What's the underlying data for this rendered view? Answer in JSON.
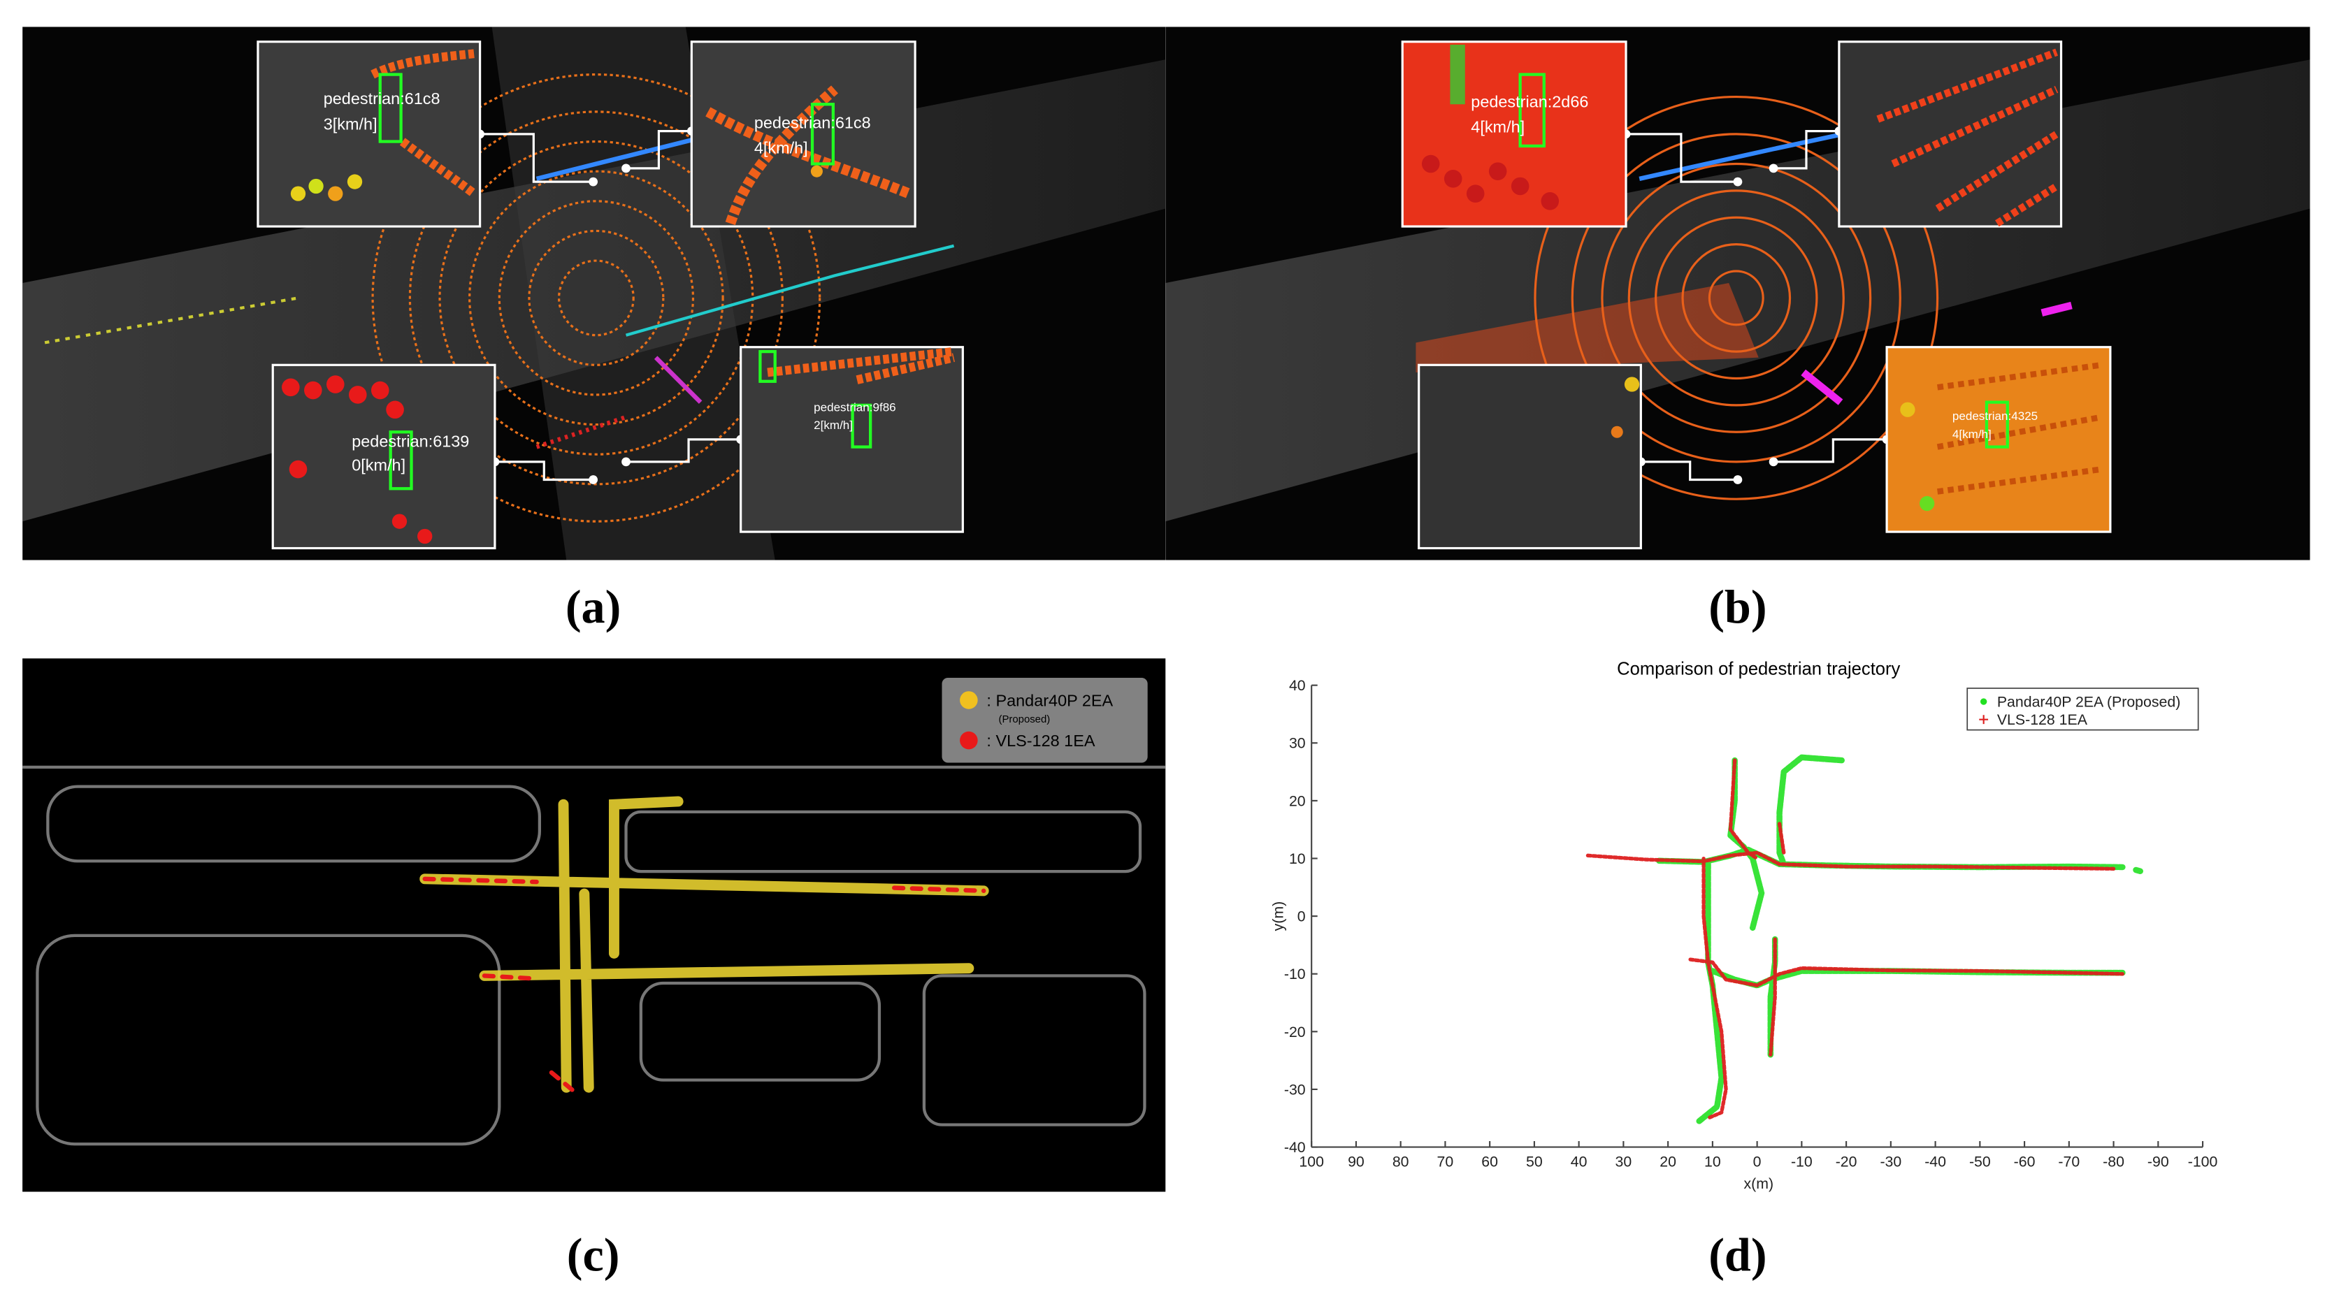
{
  "panels": {
    "a": {
      "label": "(a)",
      "insets": [
        {
          "id": "pedestrian:61c8",
          "speed": "3[km/h]"
        },
        {
          "id": "pedestrian:61c8",
          "speed": "4[km/h]"
        },
        {
          "id": "pedestrian:6139",
          "speed": "0[km/h]"
        },
        {
          "id": "pedestrian:9f86",
          "speed": "2[km/h]"
        }
      ]
    },
    "b": {
      "label": "(b)",
      "insets": [
        {
          "id": "pedestrian:2d66",
          "speed": "4[km/h]"
        },
        {
          "id": "pedestrian:4325",
          "speed": "4[km/h]"
        }
      ]
    },
    "c": {
      "label": "(c)",
      "legend": [
        {
          "name": ": Pandar40P 2EA",
          "note": "(Proposed)"
        },
        {
          "name": ": VLS-128 1EA"
        }
      ]
    },
    "d": {
      "label": "(d)"
    }
  },
  "chart_data": {
    "type": "line",
    "title": "Comparison of pedestrian trajectory",
    "x_label": "x(m)",
    "y_label": "y(m)",
    "xlim": [
      100,
      -100
    ],
    "xticks": [
      100,
      90,
      80,
      70,
      60,
      50,
      40,
      30,
      20,
      10,
      0,
      -10,
      -20,
      -30,
      -40,
      -50,
      -60,
      -70,
      -80,
      -90,
      -100
    ],
    "ylim": [
      -40,
      40
    ],
    "yticks": [
      -40,
      -30,
      -20,
      -10,
      0,
      10,
      20,
      30,
      40
    ],
    "legend": "upper right",
    "series": [
      {
        "name": "Pandar40P 2EA (Proposed)",
        "color": "#22e022",
        "x": [
          22,
          12,
          6,
          2,
          -5,
          -15,
          -30,
          -50,
          -70,
          -82,
          null,
          -85,
          -86,
          null,
          11,
          11,
          11,
          10,
          9,
          8,
          9,
          13,
          null,
          5,
          5,
          6,
          3,
          1,
          -1,
          1,
          null,
          -19,
          -10,
          -6,
          -5,
          -5,
          -6,
          null,
          10,
          5,
          0,
          -3,
          -10,
          -30,
          -50,
          -70,
          -82,
          null,
          -4,
          -4,
          -3,
          -3
        ],
        "values": [
          9.6,
          9.4,
          10.5,
          11.5,
          9,
          8.8,
          8.6,
          8.5,
          8.6,
          8.5,
          null,
          8,
          7.8,
          null,
          9,
          0,
          -8,
          -12,
          -20,
          -28,
          -33,
          -35.5,
          null,
          27,
          20,
          14,
          12,
          10,
          4,
          -2,
          null,
          27,
          27.5,
          25,
          18,
          11,
          9,
          null,
          -9.5,
          -11,
          -12,
          -11,
          -9.5,
          -9.5,
          -9.7,
          -9.8,
          -9.8,
          null,
          -4,
          -8,
          -14,
          -24
        ]
      },
      {
        "name": "VLS-128 1EA",
        "color": "#dd1f1f",
        "x": [
          38,
          25,
          12,
          6,
          0,
          -5,
          -20,
          -40,
          -60,
          -80,
          null,
          12,
          12,
          11,
          10,
          8,
          7,
          8,
          11,
          null,
          5,
          6,
          2,
          0,
          null,
          -5,
          -6,
          null,
          15,
          10,
          7,
          0,
          -5,
          -10,
          -30,
          -50,
          -70,
          -82,
          null,
          -4,
          -4,
          -3
        ],
        "values": [
          10.5,
          9.8,
          9.5,
          10.5,
          11,
          9,
          8.6,
          8.6,
          8.4,
          8.2,
          null,
          10,
          0,
          -8,
          -12,
          -20,
          -30,
          -34,
          -35,
          null,
          27,
          15,
          11,
          10,
          null,
          16,
          11,
          null,
          -7.5,
          -8,
          -11,
          -12,
          -10,
          -9,
          -9.4,
          -9.5,
          -9.8,
          -10,
          null,
          -4,
          -14,
          -24
        ]
      }
    ]
  }
}
